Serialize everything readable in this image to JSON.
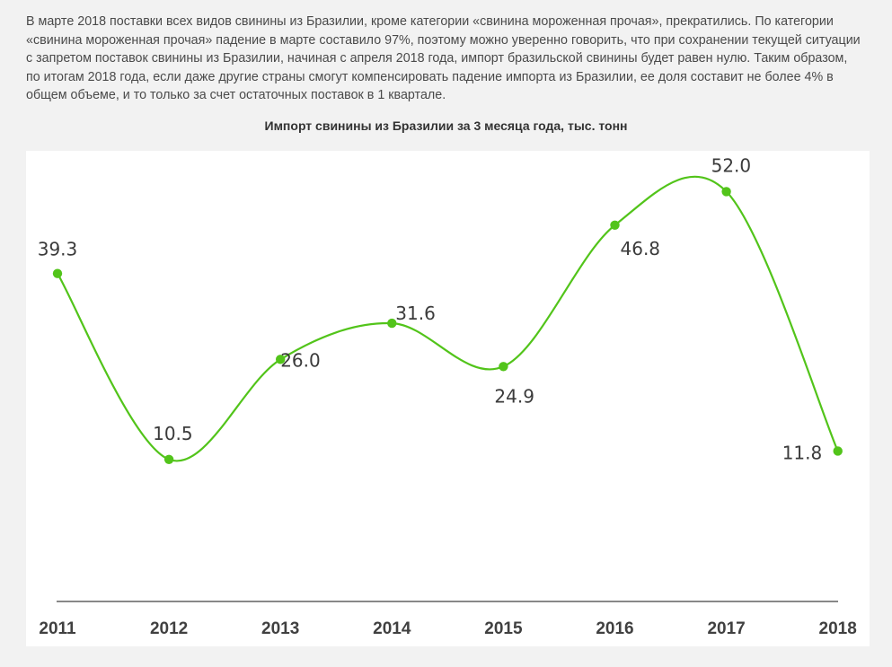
{
  "article": {
    "paragraph": "В марте 2018 поставки всех видов свинины из Бразилии, кроме категории «свинина мороженная прочая», прекратились. По категории «свинина мороженная прочая» падение в марте составило 97%, поэтому можно уверенно говорить, что при сохранении текущей ситуации с запретом поставок свинины из Бразилии, начиная с апреля 2018 года, импорт бразильской свинины будет равен нулю. Таким образом, по итогам 2018 года, если даже другие страны смогут компенсировать падение импорта из Бразилии, ее доля составит не более 4% в общем объеме, и то только за счет остаточных поставок в 1 квартале."
  },
  "chart_data": {
    "type": "line",
    "title": "Импорт свинины из Бразилии за 3 месяца года, тыс. тонн",
    "categories": [
      "2011",
      "2012",
      "2013",
      "2014",
      "2015",
      "2016",
      "2017",
      "2018"
    ],
    "series": [
      {
        "values": [
          39.3,
          10.5,
          26.0,
          31.6,
          24.9,
          46.8,
          52.0,
          11.8
        ],
        "labels": [
          "39.3",
          "10.5",
          "26.0",
          "31.6",
          "24.9",
          "46.8",
          "52.0",
          "11.8"
        ]
      }
    ],
    "xlabel": "",
    "ylabel": "",
    "grid": false,
    "colors": {
      "line": "#52c41a",
      "baseline": "#888888"
    }
  }
}
